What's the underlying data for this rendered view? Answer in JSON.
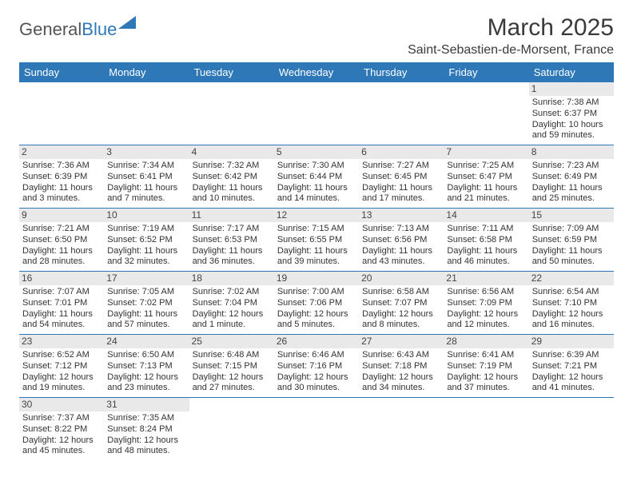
{
  "logo": {
    "general": "General",
    "blue": "Blue"
  },
  "title": "March 2025",
  "location": "Saint-Sebastien-de-Morsent, France",
  "colors": {
    "header_bg": "#2f78b8",
    "header_fg": "#ffffff",
    "rule": "#2f78b8",
    "daynum_bg": "#e9e9e9"
  },
  "day_headers": [
    "Sunday",
    "Monday",
    "Tuesday",
    "Wednesday",
    "Thursday",
    "Friday",
    "Saturday"
  ],
  "weeks": [
    [
      null,
      null,
      null,
      null,
      null,
      null,
      {
        "n": "1",
        "sr": "Sunrise: 7:38 AM",
        "ss": "Sunset: 6:37 PM",
        "dl": "Daylight: 10 hours and 59 minutes."
      }
    ],
    [
      {
        "n": "2",
        "sr": "Sunrise: 7:36 AM",
        "ss": "Sunset: 6:39 PM",
        "dl": "Daylight: 11 hours and 3 minutes."
      },
      {
        "n": "3",
        "sr": "Sunrise: 7:34 AM",
        "ss": "Sunset: 6:41 PM",
        "dl": "Daylight: 11 hours and 7 minutes."
      },
      {
        "n": "4",
        "sr": "Sunrise: 7:32 AM",
        "ss": "Sunset: 6:42 PM",
        "dl": "Daylight: 11 hours and 10 minutes."
      },
      {
        "n": "5",
        "sr": "Sunrise: 7:30 AM",
        "ss": "Sunset: 6:44 PM",
        "dl": "Daylight: 11 hours and 14 minutes."
      },
      {
        "n": "6",
        "sr": "Sunrise: 7:27 AM",
        "ss": "Sunset: 6:45 PM",
        "dl": "Daylight: 11 hours and 17 minutes."
      },
      {
        "n": "7",
        "sr": "Sunrise: 7:25 AM",
        "ss": "Sunset: 6:47 PM",
        "dl": "Daylight: 11 hours and 21 minutes."
      },
      {
        "n": "8",
        "sr": "Sunrise: 7:23 AM",
        "ss": "Sunset: 6:49 PM",
        "dl": "Daylight: 11 hours and 25 minutes."
      }
    ],
    [
      {
        "n": "9",
        "sr": "Sunrise: 7:21 AM",
        "ss": "Sunset: 6:50 PM",
        "dl": "Daylight: 11 hours and 28 minutes."
      },
      {
        "n": "10",
        "sr": "Sunrise: 7:19 AM",
        "ss": "Sunset: 6:52 PM",
        "dl": "Daylight: 11 hours and 32 minutes."
      },
      {
        "n": "11",
        "sr": "Sunrise: 7:17 AM",
        "ss": "Sunset: 6:53 PM",
        "dl": "Daylight: 11 hours and 36 minutes."
      },
      {
        "n": "12",
        "sr": "Sunrise: 7:15 AM",
        "ss": "Sunset: 6:55 PM",
        "dl": "Daylight: 11 hours and 39 minutes."
      },
      {
        "n": "13",
        "sr": "Sunrise: 7:13 AM",
        "ss": "Sunset: 6:56 PM",
        "dl": "Daylight: 11 hours and 43 minutes."
      },
      {
        "n": "14",
        "sr": "Sunrise: 7:11 AM",
        "ss": "Sunset: 6:58 PM",
        "dl": "Daylight: 11 hours and 46 minutes."
      },
      {
        "n": "15",
        "sr": "Sunrise: 7:09 AM",
        "ss": "Sunset: 6:59 PM",
        "dl": "Daylight: 11 hours and 50 minutes."
      }
    ],
    [
      {
        "n": "16",
        "sr": "Sunrise: 7:07 AM",
        "ss": "Sunset: 7:01 PM",
        "dl": "Daylight: 11 hours and 54 minutes."
      },
      {
        "n": "17",
        "sr": "Sunrise: 7:05 AM",
        "ss": "Sunset: 7:02 PM",
        "dl": "Daylight: 11 hours and 57 minutes."
      },
      {
        "n": "18",
        "sr": "Sunrise: 7:02 AM",
        "ss": "Sunset: 7:04 PM",
        "dl": "Daylight: 12 hours and 1 minute."
      },
      {
        "n": "19",
        "sr": "Sunrise: 7:00 AM",
        "ss": "Sunset: 7:06 PM",
        "dl": "Daylight: 12 hours and 5 minutes."
      },
      {
        "n": "20",
        "sr": "Sunrise: 6:58 AM",
        "ss": "Sunset: 7:07 PM",
        "dl": "Daylight: 12 hours and 8 minutes."
      },
      {
        "n": "21",
        "sr": "Sunrise: 6:56 AM",
        "ss": "Sunset: 7:09 PM",
        "dl": "Daylight: 12 hours and 12 minutes."
      },
      {
        "n": "22",
        "sr": "Sunrise: 6:54 AM",
        "ss": "Sunset: 7:10 PM",
        "dl": "Daylight: 12 hours and 16 minutes."
      }
    ],
    [
      {
        "n": "23",
        "sr": "Sunrise: 6:52 AM",
        "ss": "Sunset: 7:12 PM",
        "dl": "Daylight: 12 hours and 19 minutes."
      },
      {
        "n": "24",
        "sr": "Sunrise: 6:50 AM",
        "ss": "Sunset: 7:13 PM",
        "dl": "Daylight: 12 hours and 23 minutes."
      },
      {
        "n": "25",
        "sr": "Sunrise: 6:48 AM",
        "ss": "Sunset: 7:15 PM",
        "dl": "Daylight: 12 hours and 27 minutes."
      },
      {
        "n": "26",
        "sr": "Sunrise: 6:46 AM",
        "ss": "Sunset: 7:16 PM",
        "dl": "Daylight: 12 hours and 30 minutes."
      },
      {
        "n": "27",
        "sr": "Sunrise: 6:43 AM",
        "ss": "Sunset: 7:18 PM",
        "dl": "Daylight: 12 hours and 34 minutes."
      },
      {
        "n": "28",
        "sr": "Sunrise: 6:41 AM",
        "ss": "Sunset: 7:19 PM",
        "dl": "Daylight: 12 hours and 37 minutes."
      },
      {
        "n": "29",
        "sr": "Sunrise: 6:39 AM",
        "ss": "Sunset: 7:21 PM",
        "dl": "Daylight: 12 hours and 41 minutes."
      }
    ],
    [
      {
        "n": "30",
        "sr": "Sunrise: 7:37 AM",
        "ss": "Sunset: 8:22 PM",
        "dl": "Daylight: 12 hours and 45 minutes."
      },
      {
        "n": "31",
        "sr": "Sunrise: 7:35 AM",
        "ss": "Sunset: 8:24 PM",
        "dl": "Daylight: 12 hours and 48 minutes."
      },
      null,
      null,
      null,
      null,
      null
    ]
  ]
}
